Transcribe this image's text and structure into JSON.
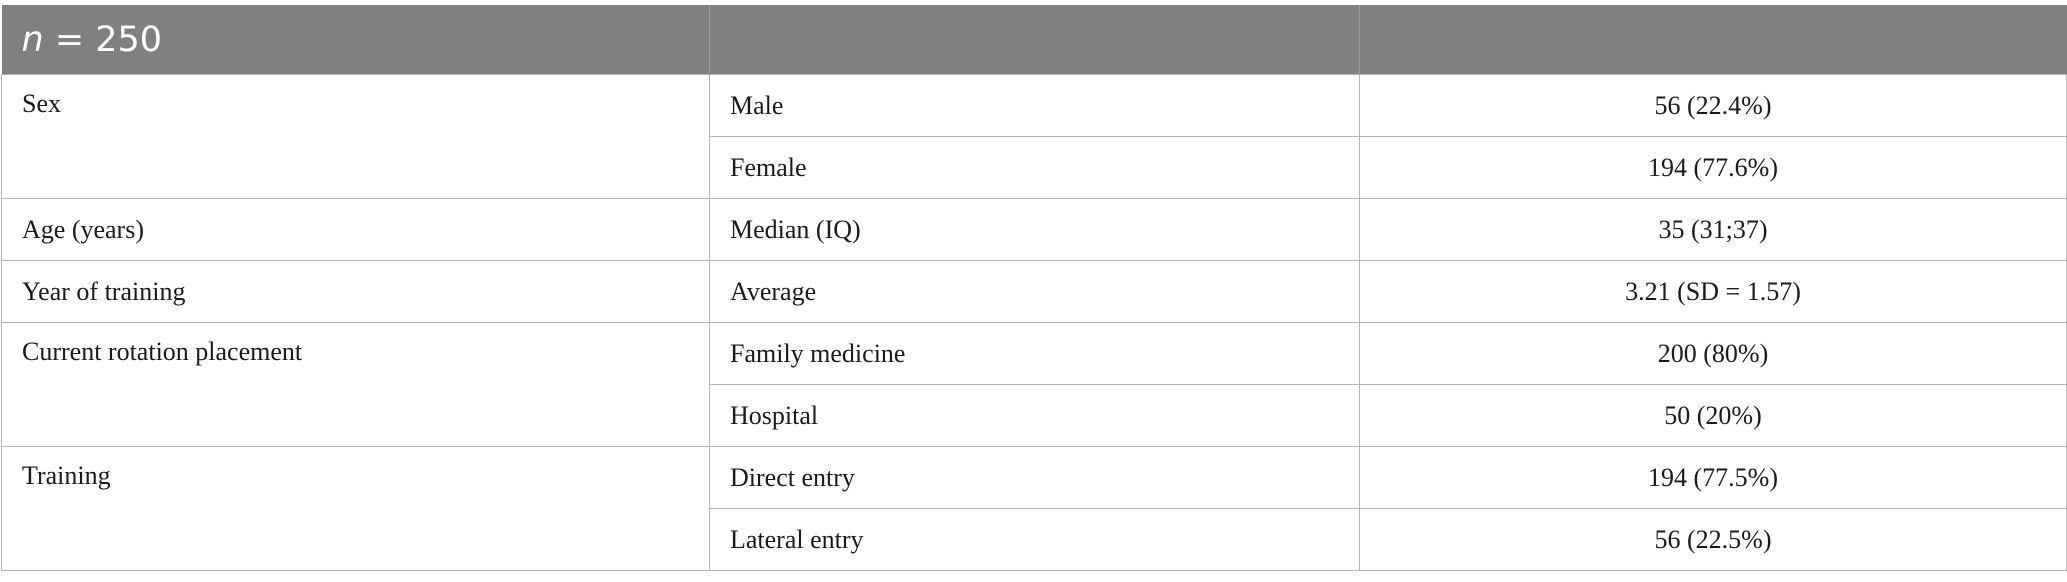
{
  "header": {
    "n_symbol": "n",
    "n_rest": " = 250"
  },
  "rows": [
    {
      "group": "Sex",
      "sub": [
        "Male",
        "Female"
      ],
      "val": [
        "56 (22.4%)",
        "194 (77.6%)"
      ]
    },
    {
      "group": "Age (years)",
      "sub": [
        "Median (IQ)"
      ],
      "val": [
        "35 (31;37)"
      ]
    },
    {
      "group": "Year of training",
      "sub": [
        "Average"
      ],
      "val": [
        "3.21 (SD = 1.57)"
      ]
    },
    {
      "group": "Current rotation placement",
      "sub": [
        "Family medicine",
        "Hospital"
      ],
      "val": [
        "200 (80%)",
        "50 (20%)"
      ]
    },
    {
      "group": "Training",
      "sub": [
        "Direct entry",
        "Lateral entry"
      ],
      "val": [
        "194 (77.5%)",
        "56 (22.5%)"
      ]
    }
  ]
}
